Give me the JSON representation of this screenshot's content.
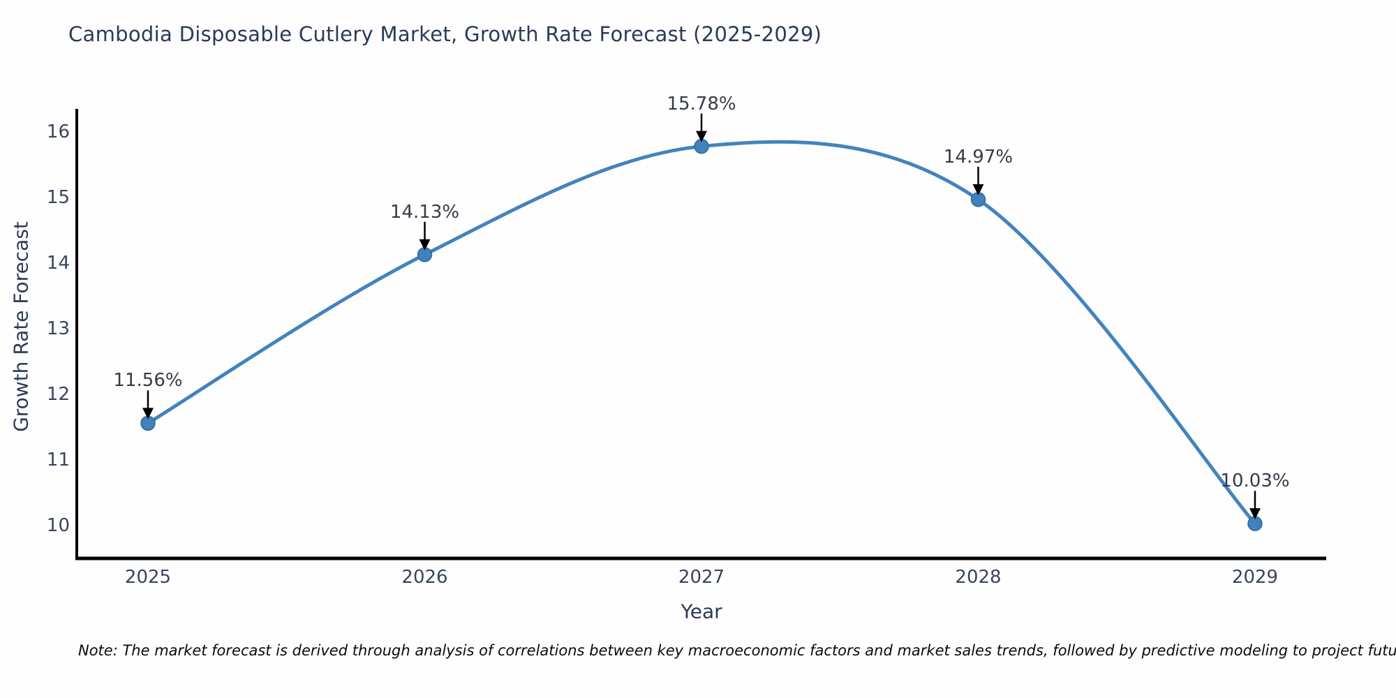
{
  "chart_data": {
    "type": "line",
    "title": "Cambodia Disposable Cutlery Market, Growth Rate Forecast (2025-2029)",
    "xlabel": "Year",
    "ylabel": "Growth Rate Forecast",
    "x": [
      2025,
      2026,
      2027,
      2028,
      2029
    ],
    "series": [
      {
        "name": "Growth Rate Forecast",
        "values": [
          11.56,
          14.13,
          15.78,
          14.97,
          10.03
        ],
        "point_labels": [
          "11.56%",
          "14.13%",
          "15.78%",
          "14.97%",
          "10.03%"
        ]
      }
    ],
    "x_tick_labels": [
      "2025",
      "2026",
      "2027",
      "2028",
      "2029"
    ],
    "y_tick_values": [
      10,
      11,
      12,
      13,
      14,
      15,
      16
    ],
    "xlim": [
      2024.73,
      2029.28
    ],
    "ylim": [
      9.5,
      16.8
    ],
    "grid": false,
    "legend": "none",
    "smooth": true,
    "line_color": "#4383bd",
    "marker_color": "#4181bc",
    "marker_edge_color": "#34689e",
    "axis_color": "#000000",
    "annotation_arrow_color": "#000000",
    "title_color": "#2b3a57",
    "tick_color": "#39455e"
  },
  "footnote": "Note: The market forecast is derived through analysis of correlations between key macroeconomic factors and market sales trends, followed by predictive modeling to project future sales"
}
